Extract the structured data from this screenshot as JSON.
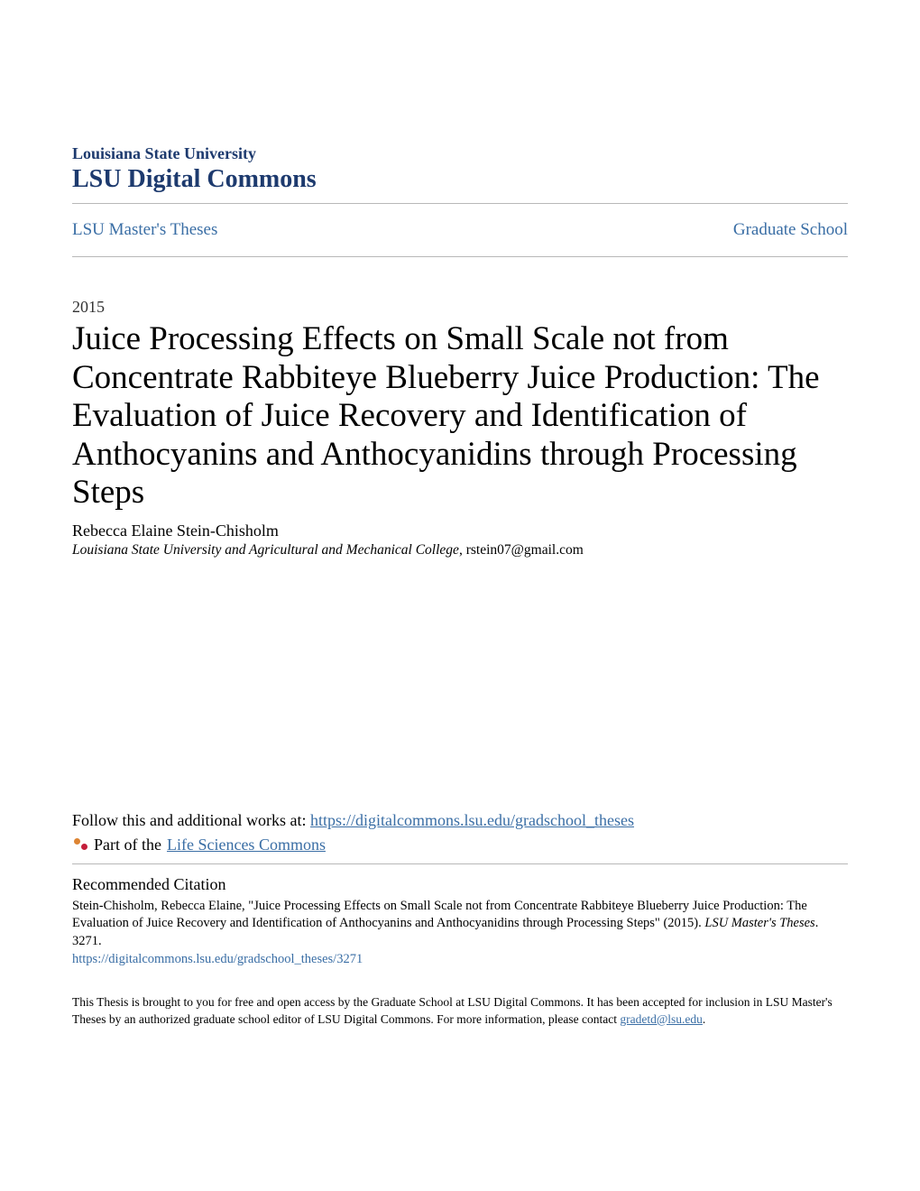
{
  "header": {
    "university": "Louisiana State University",
    "repo_name": "LSU Digital Commons"
  },
  "nav": {
    "left": "LSU Master's Theses",
    "right": "Graduate School"
  },
  "meta": {
    "year": "2015",
    "title": "Juice Processing Effects on Small Scale not from Concentrate Rabbiteye Blueberry Juice Production: The Evaluation of Juice Recovery and Identification of Anthocyanins and Anthocyanidins through Processing Steps",
    "author": "Rebecca Elaine Stein-Chisholm",
    "affiliation": "Louisiana State University and Agricultural and Mechanical College",
    "email": "rstein07@gmail.com"
  },
  "follow": {
    "prefix": "Follow this and additional works at: ",
    "link": "https://digitalcommons.lsu.edu/gradschool_theses",
    "part_of_prefix": "Part of the ",
    "part_of_link": "Life Sciences Commons"
  },
  "citation": {
    "heading": "Recommended Citation",
    "text_pre": "Stein-Chisholm, Rebecca Elaine, \"Juice Processing Effects on Small Scale not from Concentrate Rabbiteye Blueberry Juice Production: The Evaluation of Juice Recovery and Identification of Anthocyanins and Anthocyanidins through Processing Steps\" (2015). ",
    "text_italic": "LSU Master's Theses",
    "text_post": ". 3271.",
    "link": "https://digitalcommons.lsu.edu/gradschool_theses/3271"
  },
  "footer": {
    "text_pre": "This Thesis is brought to you for free and open access by the Graduate School at LSU Digital Commons. It has been accepted for inclusion in LSU Master's Theses by an authorized graduate school editor of LSU Digital Commons. For more information, please contact ",
    "link_text": "gradetd@lsu.edu",
    "text_post": "."
  },
  "colors": {
    "brand": "#1d3a6e",
    "link": "#3a6ea5",
    "divider": "#b8b8b8"
  }
}
